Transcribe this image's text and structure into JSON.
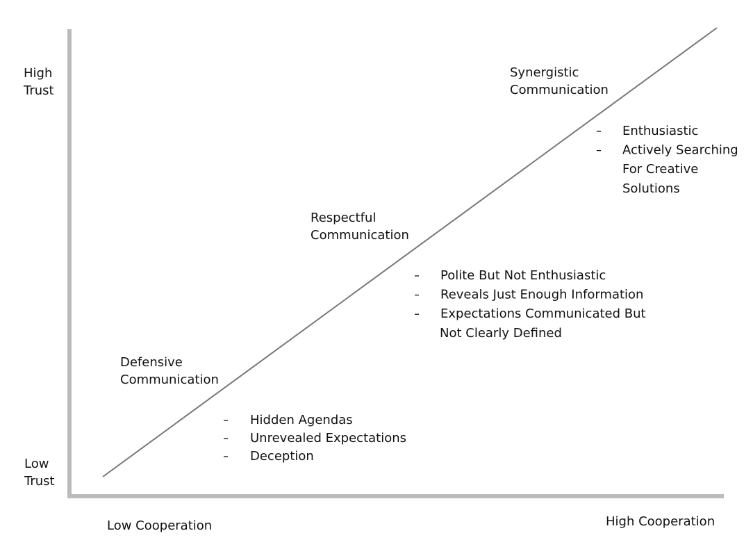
{
  "y_axis": {
    "high": [
      "High",
      "Trust"
    ],
    "low": [
      "Low",
      "Trust"
    ]
  },
  "x_axis": {
    "low": "Low Cooperation",
    "high": "High Cooperation"
  },
  "levels": [
    {
      "title": [
        "Defensive",
        "Communication"
      ],
      "bullets": [
        [
          "Hidden Agendas"
        ],
        [
          "Unrevealed Expectations"
        ],
        [
          "Deception"
        ]
      ]
    },
    {
      "title": [
        "Respectful",
        "Communication"
      ],
      "bullets": [
        [
          "Polite But Not Enthusiastic"
        ],
        [
          "Reveals Just Enough Information"
        ],
        [
          "Expectations Communicated But",
          "Not Clearly Defined"
        ]
      ]
    },
    {
      "title": [
        "Synergistic",
        "Communication"
      ],
      "bullets": [
        [
          "Enthusiastic"
        ],
        [
          "Actively Searching",
          "For Creative",
          "Solutions"
        ]
      ]
    }
  ]
}
